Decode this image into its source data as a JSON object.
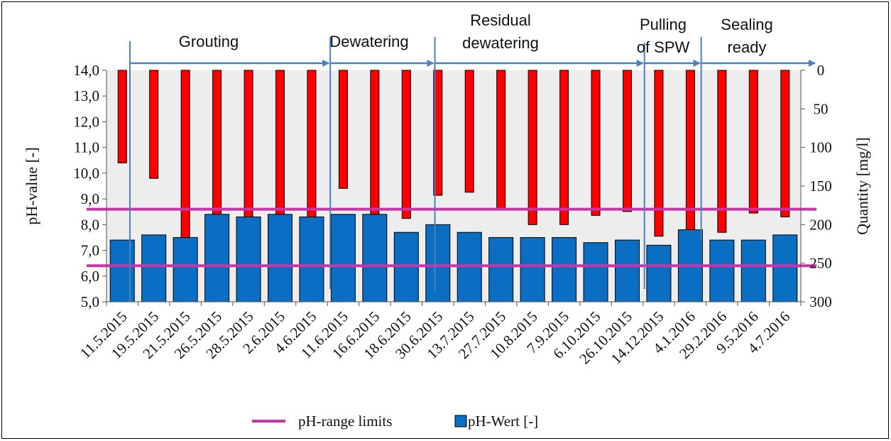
{
  "chart_data": {
    "type": "bar",
    "categories": [
      "11.5.2015",
      "19.5.2015",
      "21.5.2015",
      "26.5.2015",
      "28.5.2015",
      "2.6.2015",
      "4.6.2015",
      "11.6.2015",
      "16.6.2015",
      "18.6.2015",
      "30.6.2015",
      "13.7.2015",
      "27.7.2015",
      "10.8.2015",
      "7.9.2015",
      "6.10.2015",
      "26.10.2015",
      "14.12.2015",
      "4.1.2016",
      "29.2.2016",
      "9.5.2016",
      "4.7.2016"
    ],
    "series": [
      {
        "name": "pH-Wert [-]",
        "axis": "left",
        "color": "#0a6fc2",
        "values": [
          7.4,
          7.6,
          7.5,
          8.4,
          8.3,
          8.4,
          8.3,
          8.4,
          8.4,
          7.7,
          8.0,
          7.7,
          7.5,
          7.5,
          7.5,
          7.3,
          7.4,
          7.2,
          7.8,
          7.4,
          7.4,
          7.6
        ]
      },
      {
        "axis": "right",
        "color": "#ff0000",
        "values": [
          120,
          140,
          220,
          255,
          250,
          235,
          235,
          153,
          190,
          192,
          162,
          158,
          180,
          200,
          200,
          188,
          183,
          215,
          210,
          210,
          185,
          190
        ]
      }
    ],
    "ph_range_limits": {
      "name": "pH-range limits",
      "values": [
        6.4,
        8.6
      ],
      "color": "#cc33aa"
    },
    "phases": [
      {
        "label_lines": [
          "Grouting"
        ],
        "start_index": 0,
        "end_index": 6
      },
      {
        "label_lines": [
          "Dewatering"
        ],
        "start_index": 7,
        "end_index": 10
      },
      {
        "label_lines": [
          "Residual",
          "dewatering"
        ],
        "start_index": 10,
        "end_index": 16
      },
      {
        "label_lines": [
          "Pulling",
          "of SPW"
        ],
        "start_index": 17,
        "end_index": 18
      },
      {
        "label_lines": [
          "Sealing",
          "ready"
        ],
        "start_index": 18,
        "end_index": 21
      }
    ],
    "ylabel": "pH-value [-]",
    "y2label": "Quantity [mg/l]",
    "ylim": [
      5,
      14
    ],
    "y2lim": [
      0,
      300
    ],
    "yticks": [
      "5,0",
      "6,0",
      "7,0",
      "8,0",
      "9,0",
      "10,0",
      "11,0",
      "12,0",
      "13,0",
      "14,0"
    ],
    "y2ticks": [
      "0",
      "50",
      "100",
      "150",
      "200",
      "250",
      "300"
    ],
    "grid": false,
    "legend_position": "bottom"
  }
}
